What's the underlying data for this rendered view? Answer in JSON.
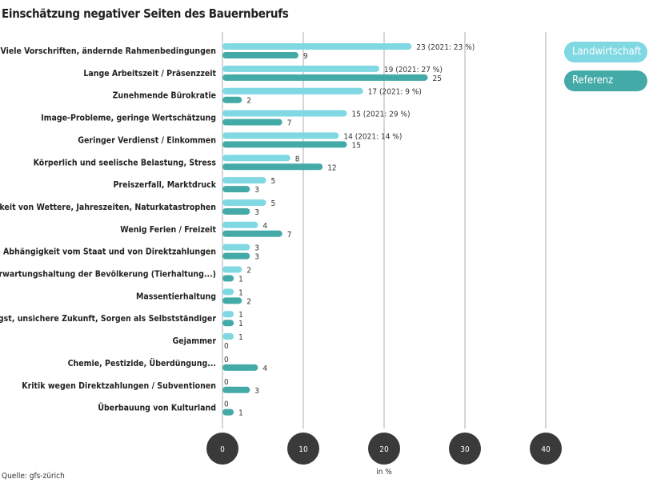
{
  "chart_data": {
    "type": "bar",
    "orientation": "horizontal",
    "title": "Einschätzung negativer Seiten des Bauernberufs",
    "xlabel": "in %",
    "xlim": [
      0,
      40
    ],
    "xticks": [
      "0",
      "10",
      "20",
      "30",
      "40"
    ],
    "grid": true,
    "legend_position": "top-right",
    "categories": [
      "Viele Vorschriften, ändernde Rahmenbedingungen",
      "Lange Arbeitszeit / Präsenzzeit",
      "Zunehmende Bürokratie",
      "Image-Probleme, geringe Wertschätzung",
      "Geringer Verdienst / Einkommen",
      "Körperlich und seelische Belastung, Stress",
      "Preiszerfall, Marktdruck",
      "Abhängigkeit von Wettere, Jahreszeiten, Naturkatastrophen",
      "Wenig Ferien / Freizeit",
      "Abhängigkeit vom Staat und von Direktzahlungen",
      "Erwartungshaltung der Bevölkerung (Tierhaltung...)",
      "Massentierhaltung",
      "Existenzangst, unsichere Zukunft, Sorgen als Selbstständiger",
      "Gejammer",
      "Chemie, Pestizide, Überdüngung...",
      "Kritik wegen Direktzahlungen / Subventionen",
      "Überbauung von Kulturland"
    ],
    "series": [
      {
        "name": "Landwirtschaft",
        "color": "#7fd8e2",
        "values": [
          23,
          19,
          17,
          15,
          14,
          8,
          5,
          5,
          4,
          3,
          2,
          1,
          1,
          1,
          0,
          0,
          0
        ],
        "labels": [
          "23 (2021: 23 %)",
          "19 (2021: 27 %)",
          "17 (2021: 9 %)",
          "15 (2021: 29 %)",
          "14 (2021: 14 %)",
          "8",
          "5",
          "5",
          "4",
          "3",
          "2",
          "1",
          "1",
          "1",
          "0",
          "0",
          "0"
        ]
      },
      {
        "name": "Referenz",
        "color": "#44aaa8",
        "values": [
          9,
          25,
          2,
          7,
          15,
          12,
          3,
          3,
          7,
          3,
          1,
          2,
          1,
          0,
          4,
          3,
          1
        ],
        "labels": [
          "9",
          "25",
          "2",
          "7",
          "15",
          "12",
          "3",
          "3",
          "7",
          "3",
          "1",
          "2",
          "1",
          "0",
          "4",
          "3",
          "1"
        ]
      }
    ],
    "source": "Quelle: gfs-zürich"
  }
}
